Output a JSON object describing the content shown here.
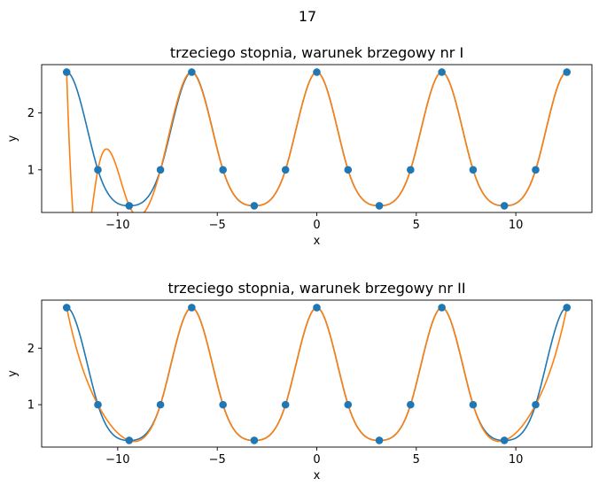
{
  "figure": {
    "suptitle": "17"
  },
  "colors": {
    "spline_natural": "#1f77b4",
    "spline_clamped": "#ff7f0e",
    "nodes": "#1f77b4"
  },
  "chart_data": [
    {
      "type": "line",
      "title": "trzeciego stopnia, warunek brzegowy nr I",
      "xlabel": "x",
      "ylabel": "y",
      "xlim": [
        -13.823,
        13.823
      ],
      "ylim": [
        0.25,
        2.85
      ],
      "xticks": [
        -10,
        -5,
        0,
        5,
        10
      ],
      "xtick_labels": [
        "−10",
        "−5",
        "0",
        "5",
        "10"
      ],
      "yticks": [
        1,
        2
      ],
      "ytick_labels": [
        "1",
        "2"
      ],
      "grid": false,
      "nodes": {
        "x": [
          -12.566,
          -10.996,
          -9.425,
          -7.854,
          -6.283,
          -4.712,
          -3.142,
          -1.571,
          0.0,
          1.571,
          3.142,
          4.712,
          6.283,
          7.854,
          9.425,
          10.996,
          12.566
        ],
        "y": [
          2.718,
          1.0,
          0.368,
          1.0,
          2.718,
          1.0,
          0.368,
          1.0,
          2.718,
          1.0,
          0.368,
          1.0,
          2.718,
          1.0,
          0.368,
          1.0,
          2.718
        ]
      },
      "series": [
        {
          "color": "#1f77b4",
          "boundary_slopes": [
            0.0,
            0.0
          ]
        },
        {
          "color": "#ff7f0e",
          "boundary_slopes": [
            -11.0,
            0.0
          ]
        }
      ]
    },
    {
      "type": "line",
      "title": "trzeciego stopnia, warunek brzegowy nr II",
      "xlabel": "x",
      "ylabel": "y",
      "xlim": [
        -13.823,
        13.823
      ],
      "ylim": [
        0.25,
        2.85
      ],
      "xticks": [
        -10,
        -5,
        0,
        5,
        10
      ],
      "xtick_labels": [
        "−10",
        "−5",
        "0",
        "5",
        "10"
      ],
      "yticks": [
        1,
        2
      ],
      "ytick_labels": [
        "1",
        "2"
      ],
      "grid": false,
      "nodes": {
        "x": [
          -12.566,
          -10.996,
          -9.425,
          -7.854,
          -6.283,
          -4.712,
          -3.142,
          -1.571,
          0.0,
          1.571,
          3.142,
          4.712,
          6.283,
          7.854,
          9.425,
          10.996,
          12.566
        ],
        "y": [
          2.718,
          1.0,
          0.368,
          1.0,
          2.718,
          1.0,
          0.368,
          1.0,
          2.718,
          1.0,
          0.368,
          1.0,
          2.718,
          1.0,
          0.368,
          1.0,
          2.718
        ]
      },
      "series": [
        {
          "color": "#1f77b4",
          "boundary_slopes": [
            0.0,
            0.0
          ]
        },
        {
          "color": "#ff7f0e",
          "boundary_slopes": [
            -1.7,
            1.7
          ]
        }
      ]
    }
  ]
}
